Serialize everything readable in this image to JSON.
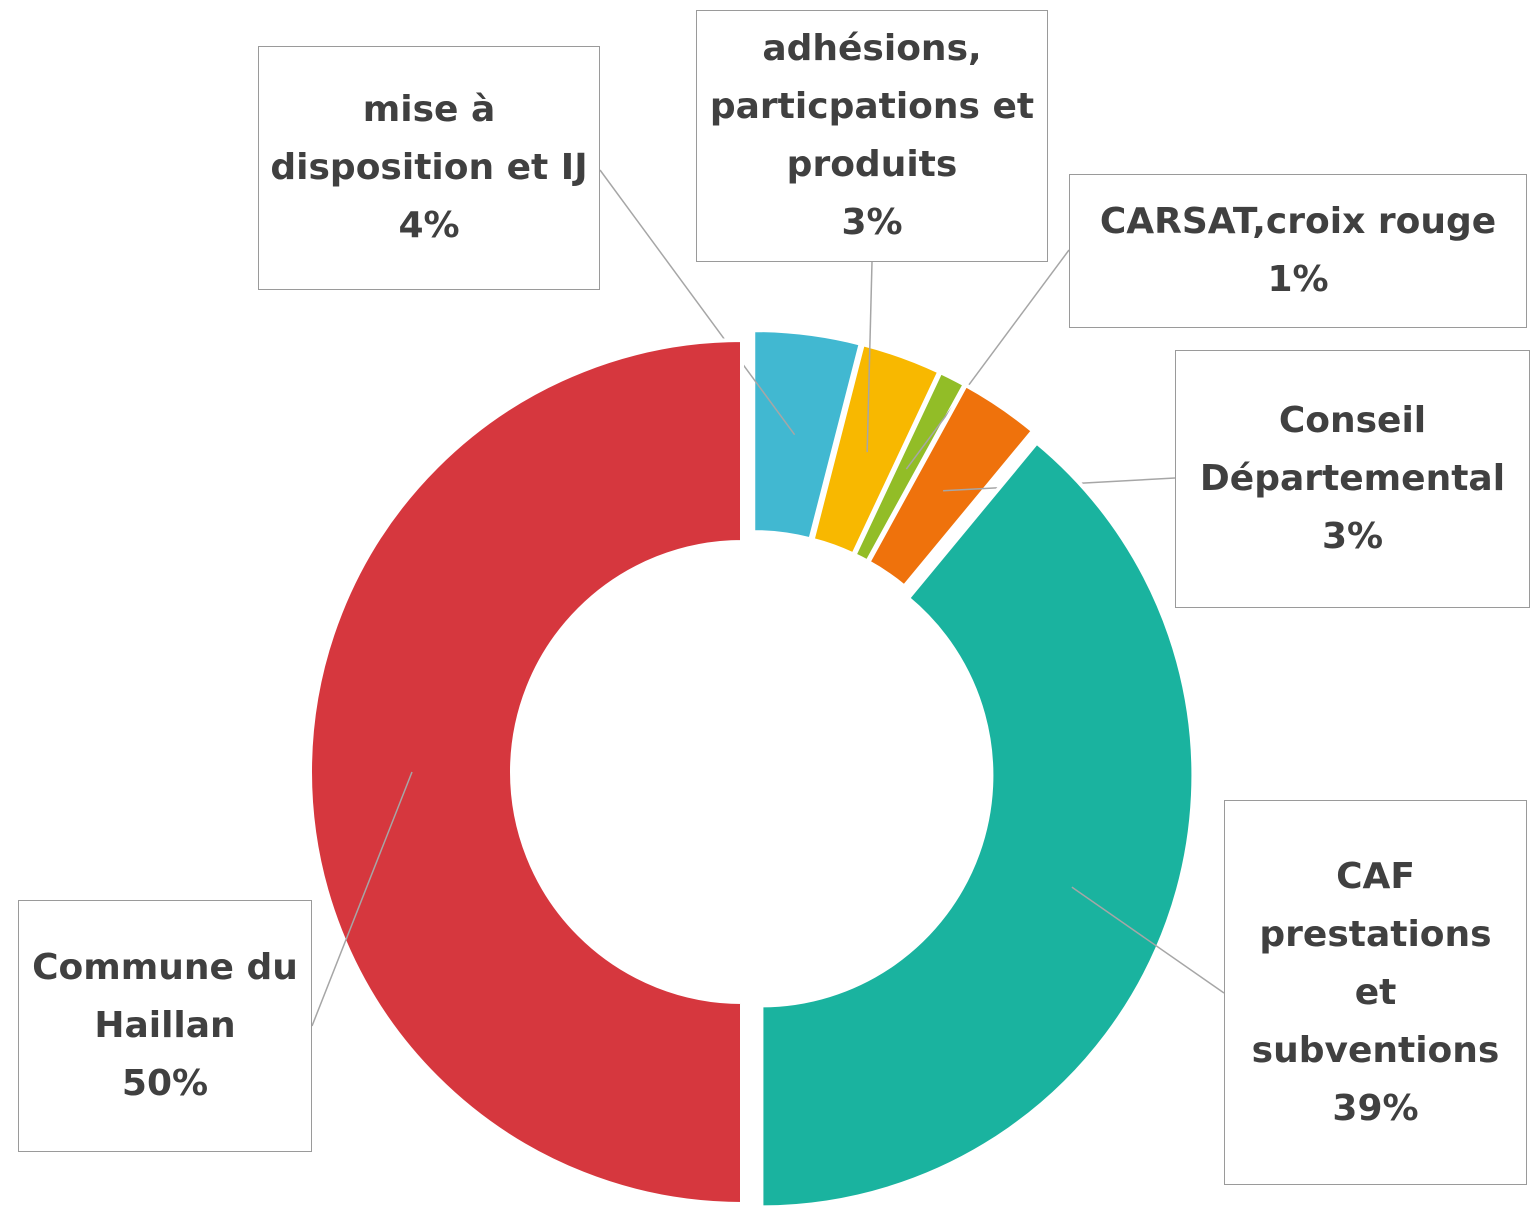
{
  "chart_data": {
    "type": "donut",
    "categories": [
      "mise à disposition et IJ",
      "adhésions, particpations et produits",
      "CARSAT,croix rouge",
      "Conseil Départemental",
      "CAF prestations et subventions",
      "Commune du Haillan"
    ],
    "values": [
      4,
      3,
      1,
      3,
      39,
      50
    ],
    "value_labels": [
      "4%",
      "3%",
      "1%",
      "3%",
      "39%",
      "50%"
    ],
    "colors": [
      "#41b8d1",
      "#f8b800",
      "#92bd27",
      "#ef720c",
      "#1ab39f",
      "#d6373e"
    ]
  }
}
